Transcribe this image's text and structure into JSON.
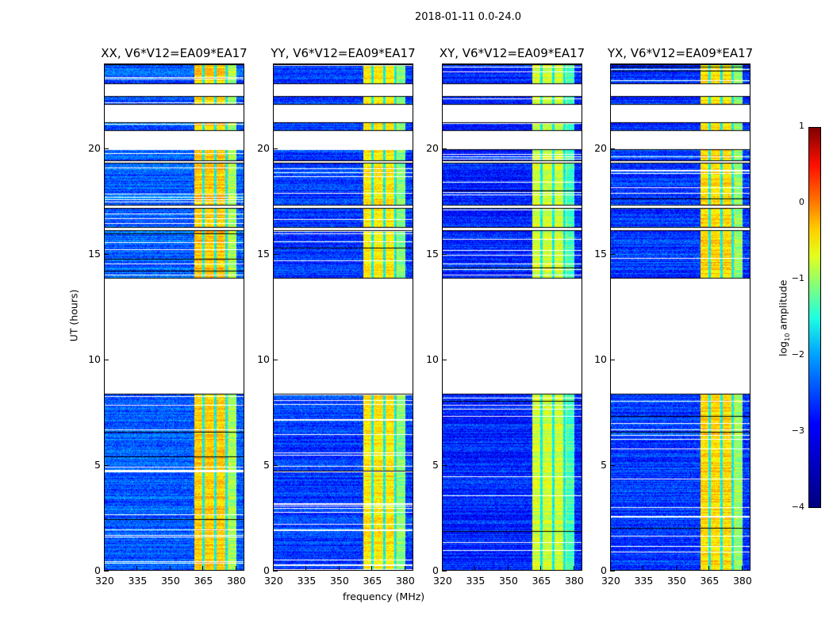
{
  "title": "2018-01-11 0.0-24.0",
  "chart_data": {
    "type": "heatmap",
    "title": "2018-01-11 0.0-24.0",
    "xlabel": "frequency (MHz)",
    "ylabel": "UT (hours)",
    "xlim": [
      320,
      384
    ],
    "ylim": [
      0,
      24
    ],
    "xticks": [
      "320",
      "335",
      "350",
      "365",
      "380"
    ],
    "yticks": [
      "0",
      "5",
      "10",
      "15",
      "20"
    ],
    "panels": [
      {
        "title": "XX, V6*V12=EA09*EA17",
        "background_log_amp": -2.9,
        "band_log_amp": -0.6
      },
      {
        "title": "YY, V6*V12=EA09*EA17",
        "background_log_amp": -3.1,
        "band_log_amp": -0.8
      },
      {
        "title": "XY, V6*V12=EA09*EA17",
        "background_log_amp": -3.2,
        "band_log_amp": -1.1
      },
      {
        "title": "YX, V6*V12=EA09*EA17",
        "background_log_amp": -3.1,
        "band_log_amp": -0.7
      }
    ],
    "data_time_segments_hours": [
      [
        0,
        8.43
      ],
      [
        13.87,
        16.15
      ],
      [
        16.25,
        17.2
      ],
      [
        17.3,
        19.35
      ],
      [
        19.4,
        20.0
      ],
      [
        20.85,
        21.25
      ],
      [
        22.1,
        22.5
      ],
      [
        23.05,
        24.0
      ]
    ],
    "bright_band_mhz": [
      360.5,
      380.0
    ],
    "band_notches_mhz": [
      364.8,
      370.2,
      375.3
    ],
    "colorbar": {
      "label": "log10 amplitude",
      "label_main": "log",
      "label_sub": "10",
      "label_rest": " amplitude",
      "range": [
        -4,
        1
      ],
      "ticks": [
        "1",
        "0",
        "−1",
        "−2",
        "−3",
        "−4"
      ],
      "colormap": "jet"
    }
  }
}
